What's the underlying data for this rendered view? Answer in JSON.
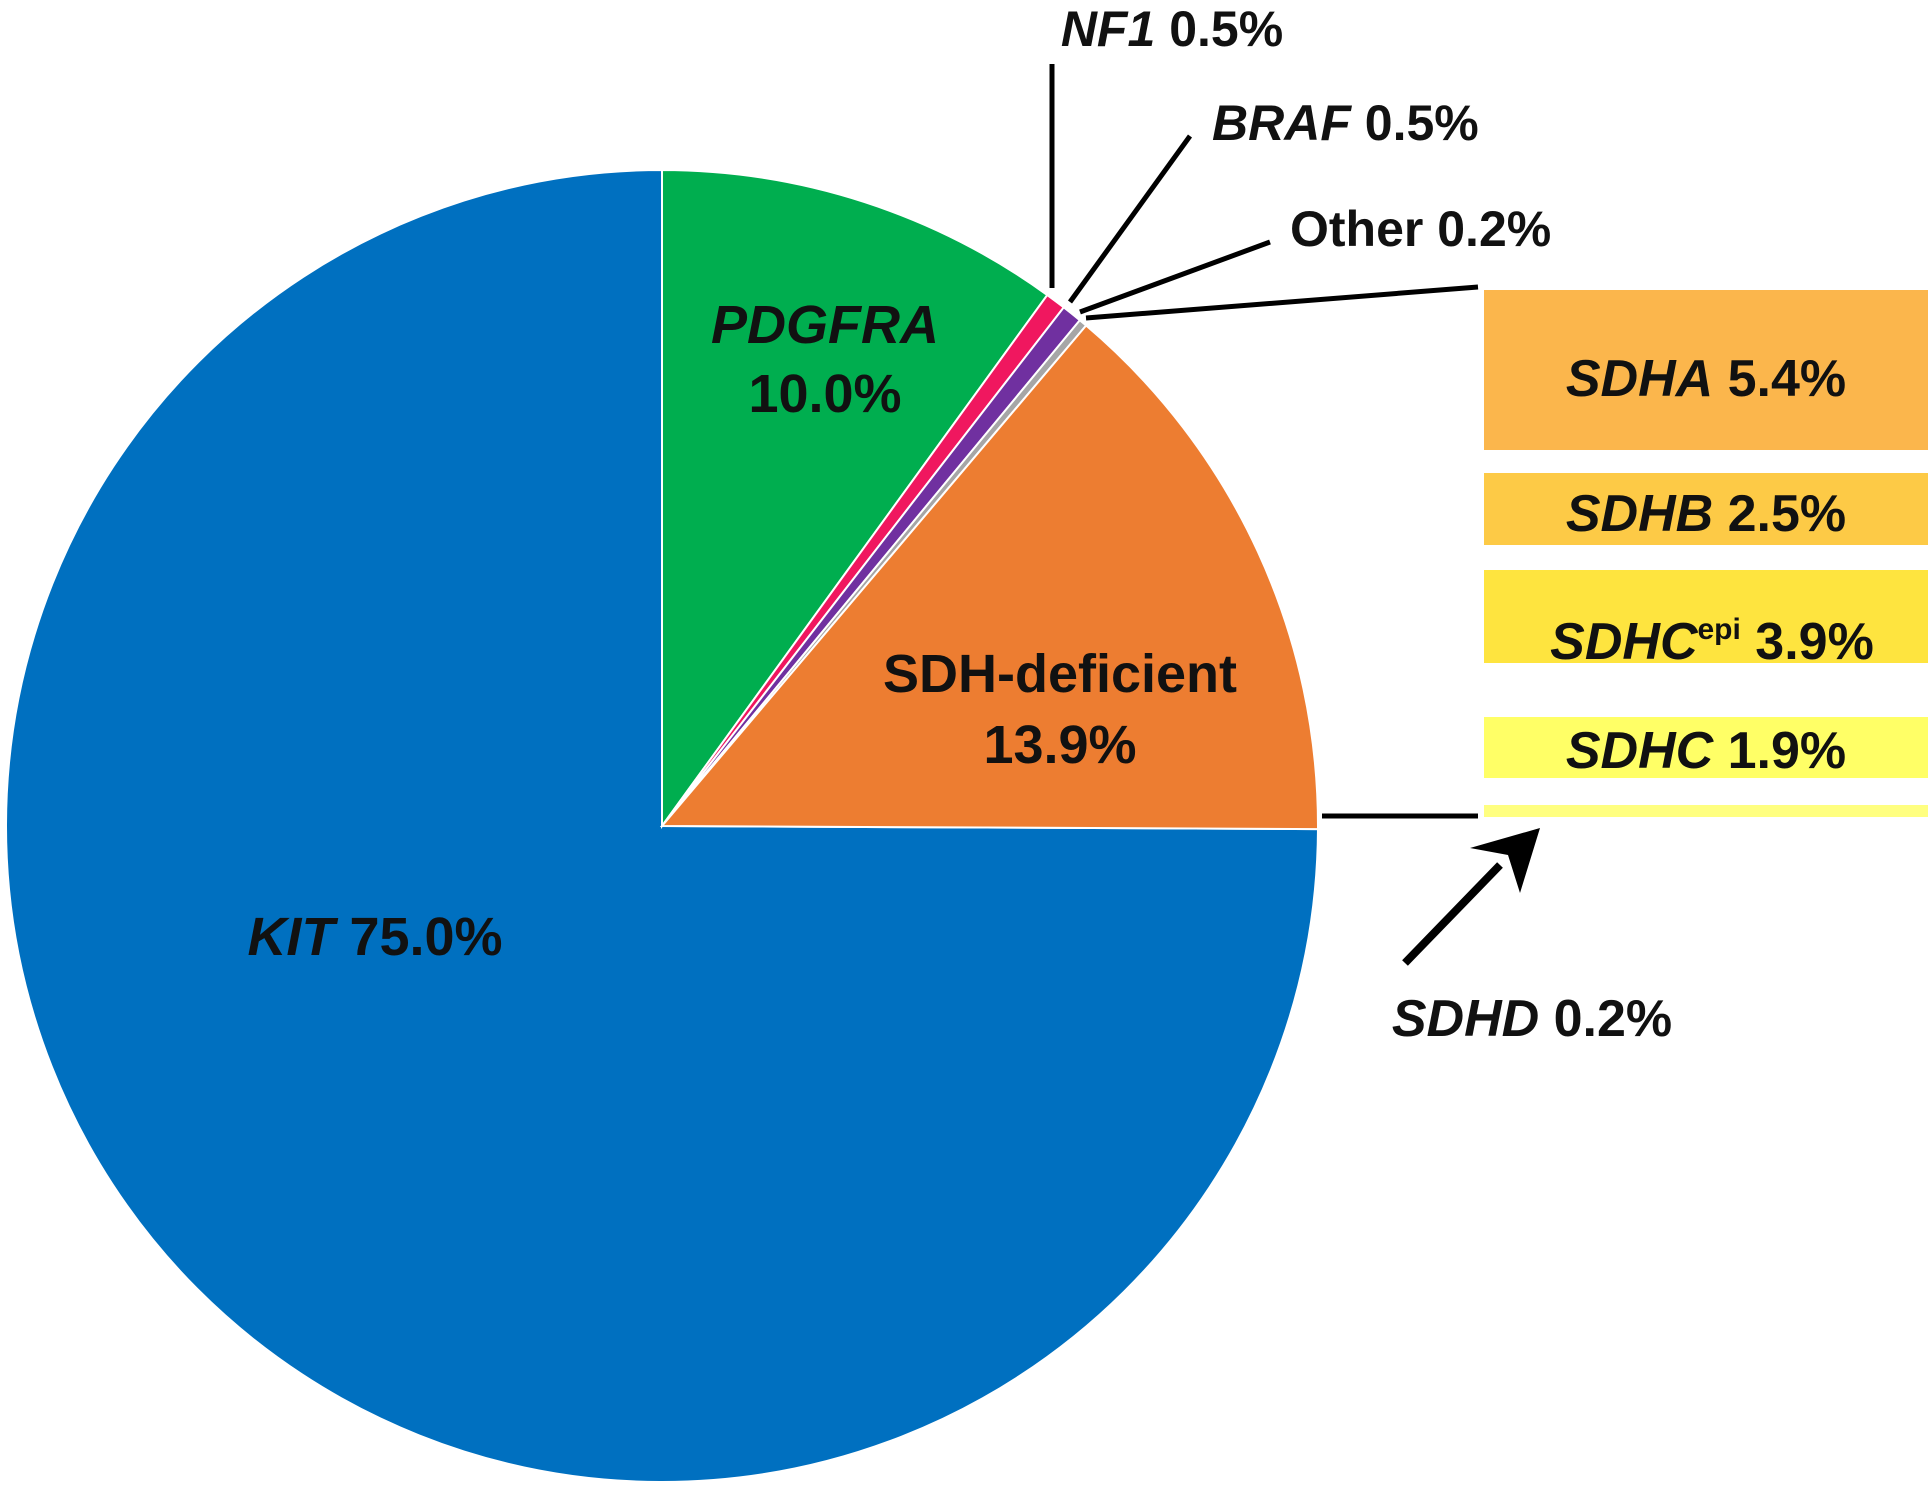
{
  "chart_data": {
    "type": "pie",
    "slices": [
      {
        "gene": "KIT",
        "value": 75.0,
        "pct": "75.0%",
        "color": "#0070C0"
      },
      {
        "gene": "PDGFRA",
        "value": 10.0,
        "pct": "10.0%",
        "color": "#00AE4F"
      },
      {
        "gene": "NF1",
        "value": 0.5,
        "pct": "0.5%",
        "color": "#F0175F"
      },
      {
        "gene": "BRAF",
        "value": 0.5,
        "pct": "0.5%",
        "color": "#7030A0"
      },
      {
        "gene": "Other",
        "value": 0.2,
        "pct": "0.2%",
        "color": "#A6A6A6"
      },
      {
        "name": "SDH-deficient",
        "value": 13.9,
        "pct": "13.9%",
        "color": "#ED7D31"
      }
    ],
    "breakdown": {
      "of": "SDH-deficient",
      "items": [
        {
          "gene": "SDHA",
          "value": 5.4,
          "pct": "5.4%",
          "color": "#FBB64C"
        },
        {
          "gene": "SDHB",
          "value": 2.5,
          "pct": "2.5%",
          "color": "#FDCA46"
        },
        {
          "gene": "SDHC",
          "sup": "epi",
          "value": 3.9,
          "pct": "3.9%",
          "color": "#FEE43F"
        },
        {
          "gene": "SDHC",
          "value": 1.9,
          "pct": "1.9%",
          "color": "#FFFF66"
        },
        {
          "gene": "SDHD",
          "value": 0.2,
          "pct": "0.2%",
          "color": "#FFFF80"
        }
      ]
    }
  }
}
